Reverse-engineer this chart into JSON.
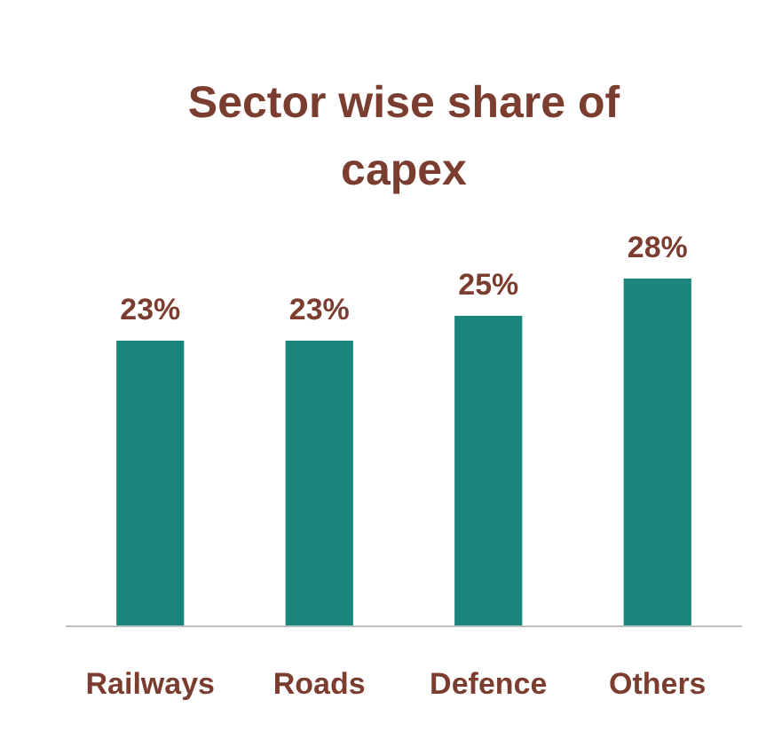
{
  "chart_data": {
    "type": "bar",
    "title": "Sector wise share of capex",
    "categories": [
      "Railways",
      "Roads",
      "Defence",
      "Others"
    ],
    "values": [
      23,
      23,
      25,
      28
    ],
    "value_labels": [
      "23%",
      "23%",
      "25%",
      "28%"
    ],
    "color": "#1a857a"
  }
}
